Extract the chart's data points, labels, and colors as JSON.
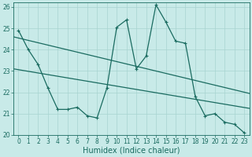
{
  "xlabel": "Humidex (Indice chaleur)",
  "xlim": [
    -0.5,
    23.5
  ],
  "ylim": [
    20,
    26.2
  ],
  "xticks": [
    0,
    1,
    2,
    3,
    4,
    5,
    6,
    7,
    8,
    9,
    10,
    11,
    12,
    13,
    14,
    15,
    16,
    17,
    18,
    19,
    20,
    21,
    22,
    23
  ],
  "yticks": [
    20,
    21,
    22,
    23,
    24,
    25,
    26
  ],
  "bg_color": "#c8eae8",
  "line_color": "#1a6b60",
  "main_x": [
    0,
    1,
    2,
    3,
    4,
    5,
    6,
    7,
    8,
    9,
    10,
    11,
    12,
    13,
    14,
    15,
    16,
    17,
    18,
    19,
    20,
    21,
    22,
    23
  ],
  "main_y": [
    24.9,
    24.0,
    23.3,
    22.2,
    21.2,
    21.2,
    21.3,
    20.9,
    20.8,
    22.2,
    25.05,
    25.4,
    23.1,
    23.7,
    26.1,
    25.3,
    24.4,
    24.3,
    21.8,
    20.9,
    21.0,
    20.6,
    20.5,
    20.1
  ],
  "trend1_x": [
    -0.5,
    23.5
  ],
  "trend1_y": [
    24.6,
    21.95
  ],
  "trend2_x": [
    -0.5,
    23.5
  ],
  "trend2_y": [
    23.1,
    21.25
  ],
  "grid_color": "#a8d4d0",
  "marker_size": 2.5,
  "line_width": 0.9,
  "tick_fontsize": 5.5,
  "xlabel_fontsize": 7
}
